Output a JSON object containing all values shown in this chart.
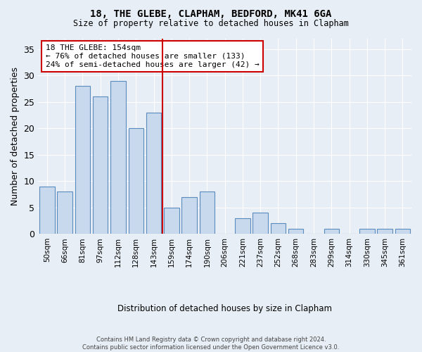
{
  "title": "18, THE GLEBE, CLAPHAM, BEDFORD, MK41 6GA",
  "subtitle": "Size of property relative to detached houses in Clapham",
  "xlabel": "Distribution of detached houses by size in Clapham",
  "ylabel": "Number of detached properties",
  "categories": [
    "50sqm",
    "66sqm",
    "81sqm",
    "97sqm",
    "112sqm",
    "128sqm",
    "143sqm",
    "159sqm",
    "174sqm",
    "190sqm",
    "206sqm",
    "221sqm",
    "237sqm",
    "252sqm",
    "268sqm",
    "283sqm",
    "299sqm",
    "314sqm",
    "330sqm",
    "345sqm",
    "361sqm"
  ],
  "values": [
    9,
    8,
    28,
    26,
    29,
    20,
    23,
    5,
    7,
    8,
    0,
    3,
    4,
    2,
    1,
    0,
    1,
    0,
    1,
    1,
    1
  ],
  "bar_color": "#c9d9ed",
  "bar_edge_color": "#5a8bbf",
  "ref_line_x": 6.5,
  "reference_line_label": "18 THE GLEBE: 154sqm",
  "annotation_line1": "← 76% of detached houses are smaller (133)",
  "annotation_line2": "24% of semi-detached houses are larger (42) →",
  "annotation_box_edge_color": "#cc0000",
  "ref_line_color": "#cc0000",
  "ylim": [
    0,
    37
  ],
  "yticks": [
    0,
    5,
    10,
    15,
    20,
    25,
    30,
    35
  ],
  "background_color": "#e8eef5",
  "footer_line1": "Contains HM Land Registry data © Crown copyright and database right 2024.",
  "footer_line2": "Contains public sector information licensed under the Open Government Licence v3.0."
}
